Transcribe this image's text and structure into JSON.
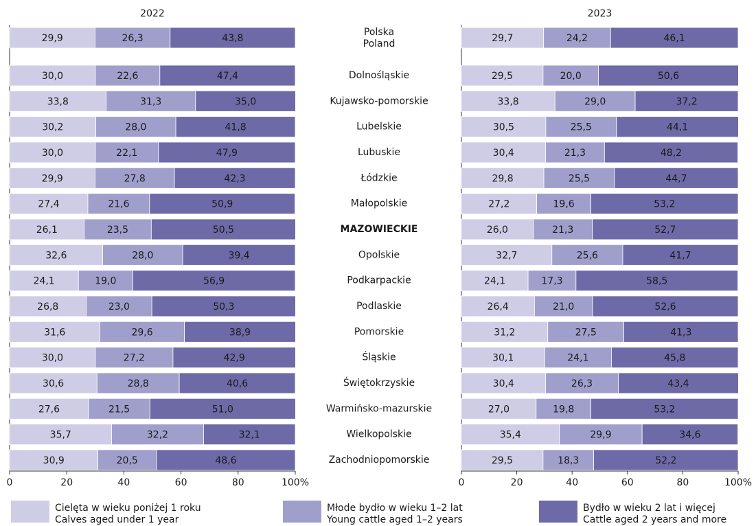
{
  "chart_data": [
    {
      "type": "stacked_bar_horizontal",
      "title": "2022",
      "categories": [
        "Polska",
        "Dolnośląskie",
        "Kujawsko-pomorskie",
        "Lubelskie",
        "Lubuskie",
        "Łódzkie",
        "Małopolskie",
        "MAZOWIECKIE",
        "Opolskie",
        "Podkarpackie",
        "Podlaskie",
        "Pomorskie",
        "Śląskie",
        "Świętokrzyskie",
        "Warmińsko-mazurskie",
        "Wielkopolskie",
        "Zachodniopomorskie"
      ],
      "categories_en": [
        "Poland",
        null,
        null,
        null,
        null,
        null,
        null,
        null,
        null,
        null,
        null,
        null,
        null,
        null,
        null,
        null,
        null
      ],
      "bold_categories": [
        7
      ],
      "xlim": [
        0,
        100
      ],
      "xticks": [
        0,
        20,
        40,
        60,
        80,
        {
          "value": 100,
          "label": "100%"
        }
      ],
      "series": [
        {
          "name": "Cielęta w wieku poniżej 1 roku",
          "name_en": "Calves aged under 1 year",
          "color": "#cfcde6",
          "values": [
            29.9,
            30.0,
            33.8,
            30.2,
            30.0,
            29.9,
            27.4,
            26.1,
            32.6,
            24.1,
            26.8,
            31.6,
            30.0,
            30.6,
            27.6,
            35.7,
            30.9
          ],
          "value_labels": [
            "29,9",
            "30,0",
            "33,8",
            "30,2",
            "30,0",
            "29,9",
            "27,4",
            "26,1",
            "32,6",
            "24,1",
            "26,8",
            "31,6",
            "30,0",
            "30,6",
            "27,6",
            "35,7",
            "30,9"
          ]
        },
        {
          "name": "Młode bydło w wieku 1–2 lat",
          "name_en": "Young cattle aged 1–2 years",
          "color": "#a09fcc",
          "values": [
            26.3,
            22.6,
            31.3,
            28.0,
            22.1,
            27.8,
            21.6,
            23.5,
            28.0,
            19.0,
            23.0,
            29.6,
            27.2,
            28.8,
            21.5,
            32.2,
            20.5
          ],
          "value_labels": [
            "26,3",
            "22,6",
            "31,3",
            "28,0",
            "22,1",
            "27,8",
            "21,6",
            "23,5",
            "28,0",
            "19,0",
            "23,0",
            "29,6",
            "27,2",
            "28,8",
            "21,5",
            "32,2",
            "20,5"
          ]
        },
        {
          "name": "Bydło w wieku 2 lat i więcej",
          "name_en": "Cattle aged 2 years and more",
          "color": "#6e6aa8",
          "values": [
            43.8,
            47.4,
            35.0,
            41.8,
            47.9,
            42.3,
            50.9,
            50.5,
            39.4,
            56.9,
            50.3,
            38.9,
            42.9,
            40.6,
            51.0,
            32.1,
            48.6
          ],
          "value_labels": [
            "43,8",
            "47,4",
            "35,0",
            "41,8",
            "47,9",
            "42,3",
            "50,9",
            "50,5",
            "39,4",
            "56,9",
            "50,3",
            "38,9",
            "42,9",
            "40,6",
            "51,0",
            "32,1",
            "48,6"
          ]
        }
      ]
    },
    {
      "type": "stacked_bar_horizontal",
      "title": "2023",
      "xlim": [
        0,
        100
      ],
      "xticks": [
        0,
        20,
        40,
        60,
        80,
        {
          "value": 100,
          "label": "100%"
        }
      ],
      "series": [
        {
          "values": [
            29.7,
            29.5,
            33.8,
            30.5,
            30.4,
            29.8,
            27.2,
            26.0,
            32.7,
            24.1,
            26.4,
            31.2,
            30.1,
            30.4,
            27.0,
            35.4,
            29.5
          ],
          "value_labels": [
            "29,7",
            "29,5",
            "33,8",
            "30,5",
            "30,4",
            "29,8",
            "27,2",
            "26,0",
            "32,7",
            "24,1",
            "26,4",
            "31,2",
            "30,1",
            "30,4",
            "27,0",
            "35,4",
            "29,5"
          ]
        },
        {
          "values": [
            24.2,
            20.0,
            29.0,
            25.5,
            21.3,
            25.5,
            19.6,
            21.3,
            25.6,
            17.3,
            21.0,
            27.5,
            24.1,
            26.3,
            19.8,
            29.9,
            18.3
          ],
          "value_labels": [
            "24,2",
            "20,0",
            "29,0",
            "25,5",
            "21,3",
            "25,5",
            "19,6",
            "21,3",
            "25,6",
            "17,3",
            "21,0",
            "27,5",
            "24,1",
            "26,3",
            "19,8",
            "29,9",
            "18,3"
          ]
        },
        {
          "values": [
            46.1,
            50.6,
            37.2,
            44.1,
            48.2,
            44.7,
            53.2,
            52.7,
            41.7,
            58.5,
            52.6,
            41.3,
            45.8,
            43.4,
            53.2,
            34.6,
            52.2
          ],
          "value_labels": [
            "46,1",
            "50,6",
            "37,2",
            "44,1",
            "48,2",
            "44,7",
            "53,2",
            "52,7",
            "41,7",
            "58,5",
            "52,6",
            "41,3",
            "45,8",
            "43,4",
            "53,2",
            "34,6",
            "52,2"
          ]
        }
      ]
    }
  ]
}
